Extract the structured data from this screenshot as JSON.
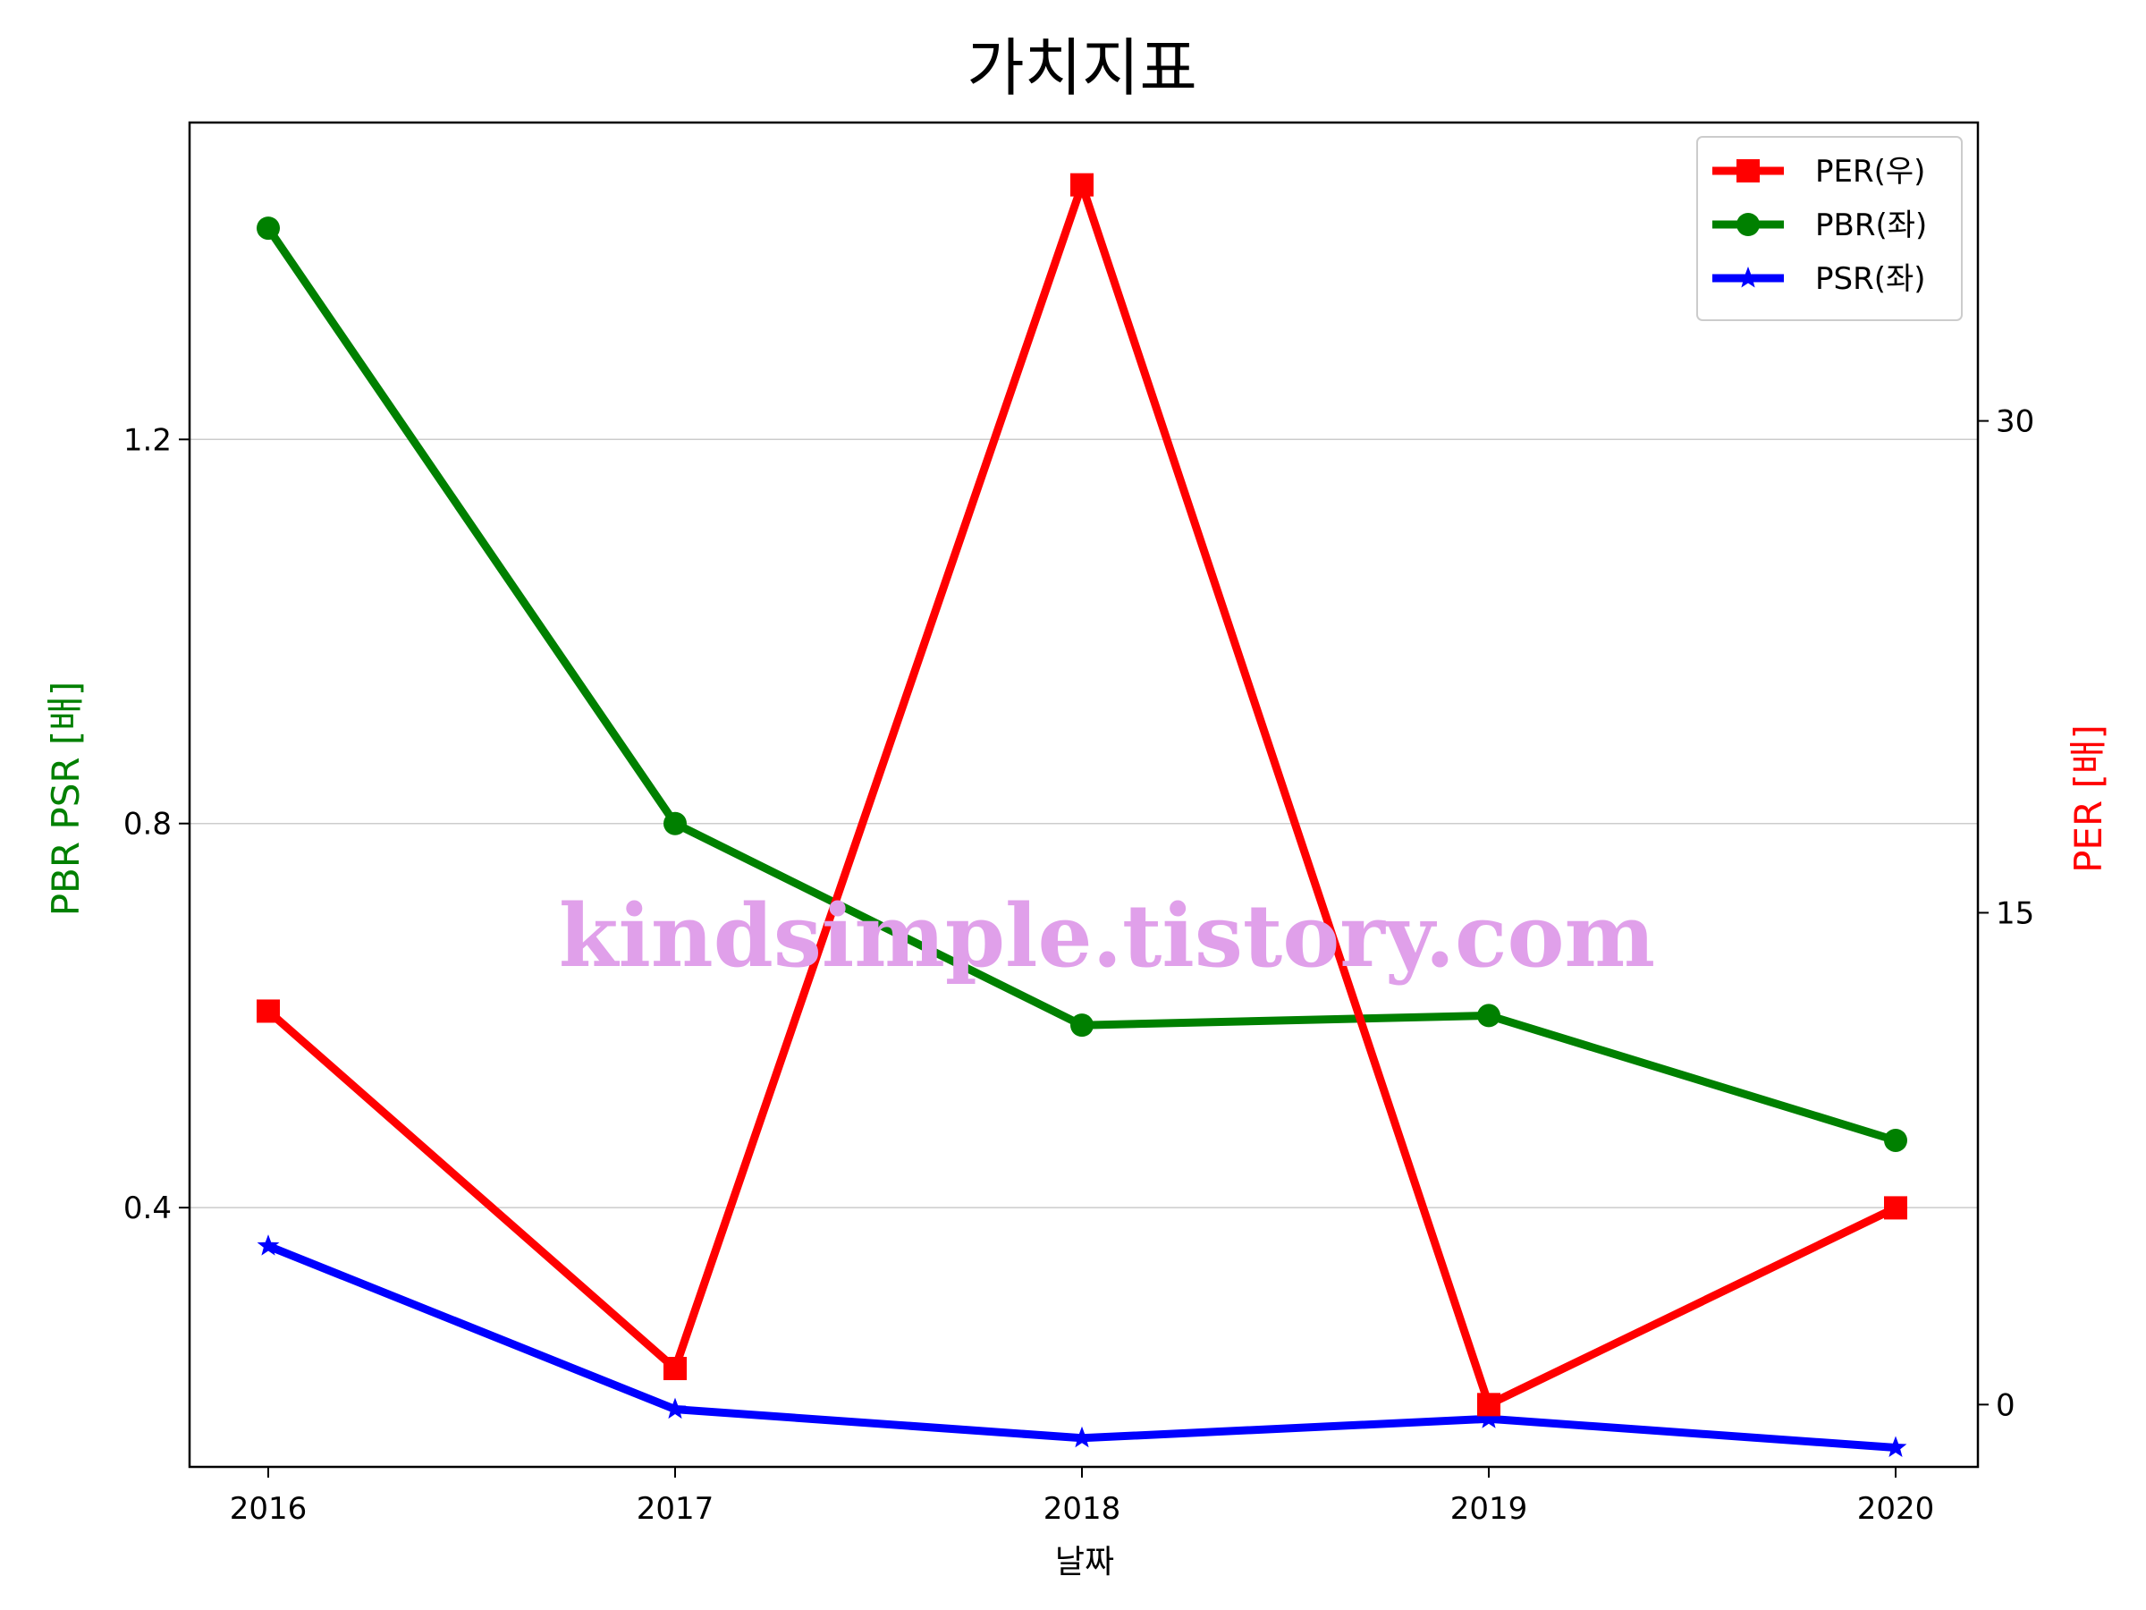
{
  "chart_data": {
    "type": "line",
    "title": "가치지표",
    "xlabel": "날짜",
    "ylabel_left": "PBR PSR [배]",
    "ylabel_right": "PER [배]",
    "categories": [
      "2016",
      "2017",
      "2018",
      "2019",
      "2020"
    ],
    "ylim_left": [
      0.13,
      1.53
    ],
    "ylim_right": [
      -1.9,
      39.1
    ],
    "yticks_left": [
      0.4,
      0.8,
      1.2
    ],
    "yticks_left_labels": [
      "0.4",
      "0.8",
      "1.2"
    ],
    "yticks_right": [
      0,
      15,
      30
    ],
    "yticks_right_labels": [
      "0",
      "15",
      "30"
    ],
    "grid": "horizontal (left axis)",
    "legend_position": "top-right",
    "series": [
      {
        "name": "PER(우)",
        "axis": "right",
        "color": "#ff0000",
        "marker": "square",
        "values": [
          12.0,
          1.1,
          37.2,
          0.0,
          6.0
        ]
      },
      {
        "name": "PBR(좌)",
        "axis": "left",
        "color": "#008000",
        "marker": "circle",
        "values": [
          1.42,
          0.8,
          0.59,
          0.6,
          0.47
        ]
      },
      {
        "name": "PSR(좌)",
        "axis": "left",
        "color": "#0000ff",
        "marker": "star",
        "values": [
          0.36,
          0.19,
          0.16,
          0.18,
          0.15
        ]
      }
    ],
    "watermark": "kindsimple.tistory.com"
  }
}
